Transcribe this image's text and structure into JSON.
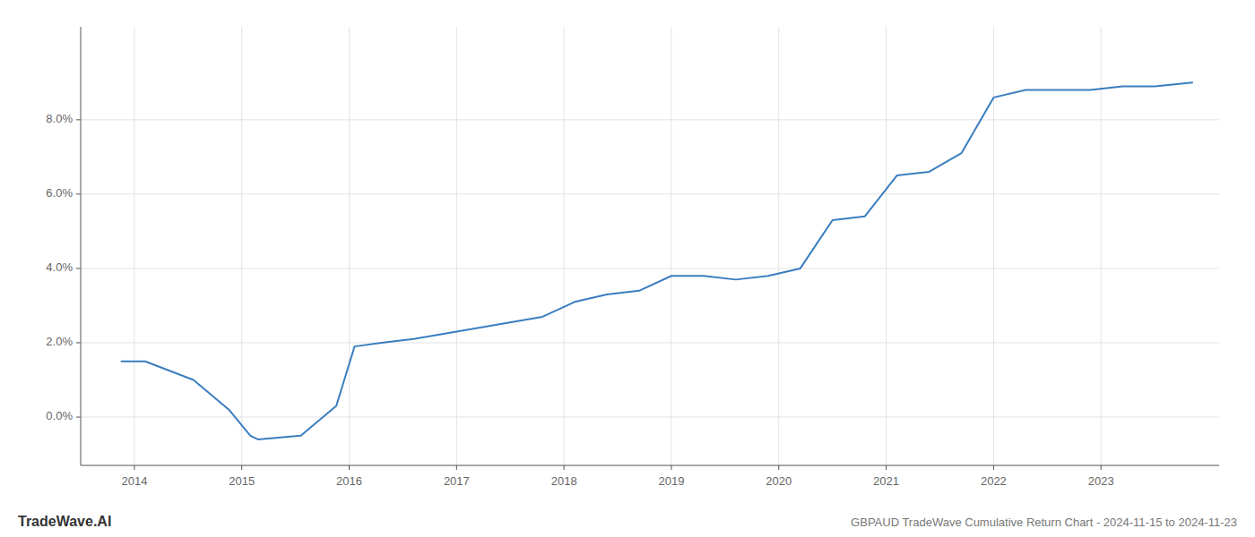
{
  "chart_data": {
    "type": "line",
    "title": "GBPAUD TradeWave Cumulative Return Chart - 2024-11-15 to 2024-11-23",
    "annotations": [
      "TradeWave.AI"
    ],
    "x": [
      2013.88,
      2014.1,
      2014.55,
      2014.88,
      2015.08,
      2015.15,
      2015.55,
      2015.88,
      2016.05,
      2016.3,
      2016.6,
      2017.0,
      2017.4,
      2017.8,
      2018.1,
      2018.4,
      2018.7,
      2019.0,
      2019.3,
      2019.6,
      2019.9,
      2020.2,
      2020.5,
      2020.8,
      2021.1,
      2021.4,
      2021.7,
      2022.0,
      2022.3,
      2022.6,
      2022.9,
      2023.2,
      2023.5,
      2023.85
    ],
    "values": [
      0.015,
      0.015,
      0.01,
      0.002,
      -0.005,
      -0.006,
      -0.005,
      0.003,
      0.019,
      0.02,
      0.021,
      0.023,
      0.025,
      0.027,
      0.031,
      0.033,
      0.034,
      0.038,
      0.038,
      0.037,
      0.038,
      0.04,
      0.053,
      0.054,
      0.065,
      0.066,
      0.071,
      0.086,
      0.088,
      0.088,
      0.088,
      0.089,
      0.089,
      0.09
    ],
    "color": "#3a7ebf",
    "xlim": [
      2013.5,
      2024.1
    ],
    "ylim": [
      -0.013,
      0.105
    ],
    "xticks": [
      2014,
      2015,
      2016,
      2017,
      2018,
      2019,
      2020,
      2021,
      2022,
      2023
    ],
    "yticks": [
      {
        "value": 0.0,
        "label": "0.0%"
      },
      {
        "value": 0.02,
        "label": "2.0%"
      },
      {
        "value": 0.04,
        "label": "4.0%"
      },
      {
        "value": 0.06,
        "label": "6.0%"
      },
      {
        "value": 0.08,
        "label": "8.0%"
      }
    ],
    "grid": true
  }
}
